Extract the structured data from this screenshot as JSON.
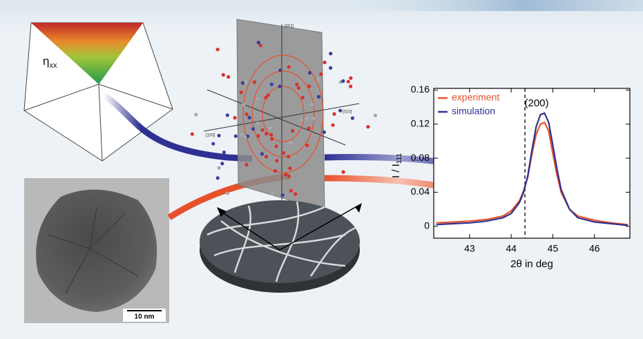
{
  "chart_data": {
    "type": "line",
    "x_label": "2θ in deg",
    "ylabel": "I / I",
    "ylabel_subscript": "111",
    "annotation": "(200)",
    "x": [
      42.2,
      42.6,
      43.0,
      43.4,
      43.8,
      44.0,
      44.2,
      44.3,
      44.4,
      44.5,
      44.6,
      44.7,
      44.8,
      44.9,
      45.0,
      45.1,
      45.2,
      45.4,
      45.6,
      46.0,
      46.4,
      46.8
    ],
    "series": [
      {
        "name": "experiment",
        "color": "#e8502a",
        "values": [
          0.004,
          0.005,
          0.006,
          0.008,
          0.012,
          0.018,
          0.03,
          0.042,
          0.058,
          0.085,
          0.108,
          0.12,
          0.122,
          0.112,
          0.085,
          0.06,
          0.04,
          0.02,
          0.012,
          0.007,
          0.004,
          0.002
        ]
      },
      {
        "name": "simulation",
        "color": "#2e3192",
        "values": [
          0.002,
          0.003,
          0.004,
          0.006,
          0.01,
          0.015,
          0.028,
          0.04,
          0.06,
          0.09,
          0.117,
          0.131,
          0.133,
          0.122,
          0.095,
          0.067,
          0.043,
          0.02,
          0.01,
          0.005,
          0.003,
          0.001
        ]
      }
    ],
    "xlim": [
      42.14,
      46.85
    ],
    "ylim": [
      -0.014,
      0.162
    ],
    "xticks": [
      43,
      44,
      45,
      46
    ],
    "yticks": [
      0,
      0.04,
      0.08,
      0.12,
      0.16
    ],
    "reference_x": 44.33,
    "legend": "upper left"
  },
  "figure": {
    "strain_label": "η",
    "strain_subscript": "xx",
    "scale_bar": "10 nm",
    "axes_3d": [
      "[001]",
      "[010]",
      "[100]"
    ]
  }
}
